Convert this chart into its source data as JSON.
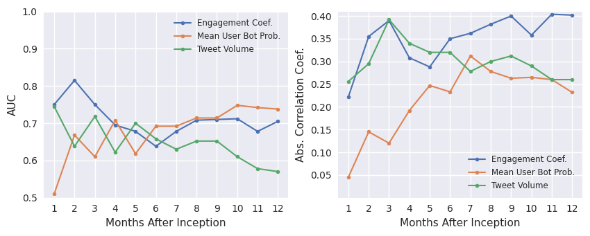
{
  "months": [
    1,
    2,
    3,
    4,
    5,
    6,
    7,
    8,
    9,
    10,
    11,
    12
  ],
  "left_engagement": [
    0.75,
    0.815,
    0.75,
    0.695,
    0.678,
    0.638,
    0.678,
    0.708,
    0.71,
    0.712,
    0.678,
    0.705
  ],
  "left_bot_prob": [
    0.51,
    0.668,
    0.61,
    0.708,
    0.618,
    0.692,
    0.692,
    0.714,
    0.714,
    0.748,
    0.742,
    0.738
  ],
  "left_tweet_vol": [
    0.745,
    0.638,
    0.718,
    0.622,
    0.7,
    0.658,
    0.63,
    0.652,
    0.652,
    0.61,
    0.578,
    0.57
  ],
  "right_engagement": [
    0.222,
    0.355,
    0.39,
    0.308,
    0.288,
    0.35,
    0.362,
    0.382,
    0.4,
    0.358,
    0.404,
    0.402
  ],
  "right_bot_prob": [
    0.045,
    0.145,
    0.12,
    0.192,
    0.247,
    0.233,
    0.312,
    0.278,
    0.263,
    0.265,
    0.26,
    0.232
  ],
  "right_tweet_vol": [
    0.256,
    0.295,
    0.392,
    0.34,
    0.32,
    0.32,
    0.278,
    0.3,
    0.312,
    0.29,
    0.26,
    0.26
  ],
  "color_blue": "#4c72b0",
  "color_orange": "#dd8452",
  "color_green": "#55a868",
  "left_ylabel": "AUC",
  "right_ylabel": "Abs. Correlation Coef.",
  "xlabel": "Months After Inception",
  "left_ylim": [
    0.5,
    1.0
  ],
  "right_ylim": [
    0.0,
    0.41
  ],
  "right_yticks": [
    0.05,
    0.1,
    0.15,
    0.2,
    0.25,
    0.3,
    0.35,
    0.4
  ],
  "legend_labels": [
    "Engagement Coef.",
    "Mean User Bot Prob.",
    "Tweet Volume"
  ],
  "left_yticks": [
    0.5,
    0.6,
    0.7,
    0.8,
    0.9,
    1.0
  ],
  "xticks": [
    1,
    2,
    3,
    4,
    5,
    6,
    7,
    8,
    9,
    10,
    11,
    12
  ],
  "axes_facecolor": "#eaeaf2",
  "grid_color": "#ffffff",
  "figure_facecolor": "#ffffff"
}
